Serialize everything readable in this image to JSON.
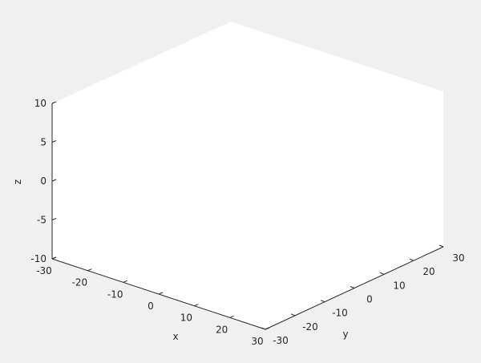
{
  "chart_data": {
    "type": "scatter",
    "title": "",
    "xlabel": "x",
    "ylabel": "y",
    "zlabel": "z",
    "xlim": [
      -30,
      30
    ],
    "ylim": [
      -30,
      30
    ],
    "zlim": [
      -10,
      10
    ],
    "xticks": [
      "-30",
      "-20",
      "-10",
      "0",
      "10",
      "20",
      "30"
    ],
    "yticks": [
      "-30",
      "-20",
      "-10",
      "0",
      "10",
      "20",
      "30"
    ],
    "zticks": [
      "-10",
      "-5",
      "0",
      "5",
      "10"
    ],
    "series": [],
    "grid": false,
    "view": "3d"
  }
}
